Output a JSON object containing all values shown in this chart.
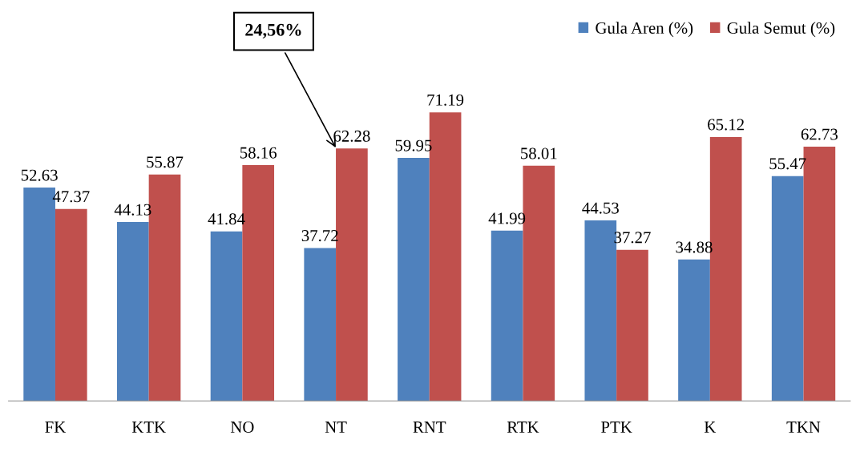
{
  "chart_data": {
    "type": "bar",
    "categories": [
      "FK",
      "KTK",
      "NO",
      "NT",
      "RNT",
      "RTK",
      "PTK",
      "K",
      "TKN"
    ],
    "series": [
      {
        "name": "Gula Aren (%)",
        "color": "#4f81bd",
        "values": [
          52.63,
          44.13,
          41.84,
          37.72,
          59.95,
          41.99,
          44.53,
          34.88,
          55.47
        ]
      },
      {
        "name": "Gula Semut (%)",
        "color": "#c0504d",
        "values": [
          47.37,
          55.87,
          58.16,
          62.28,
          71.19,
          58.01,
          37.27,
          65.12,
          62.73
        ]
      }
    ],
    "data_labels": true,
    "annotations": [
      "24,56%"
    ],
    "legend": "top right",
    "tick_labels": "x",
    "grid": false
  }
}
